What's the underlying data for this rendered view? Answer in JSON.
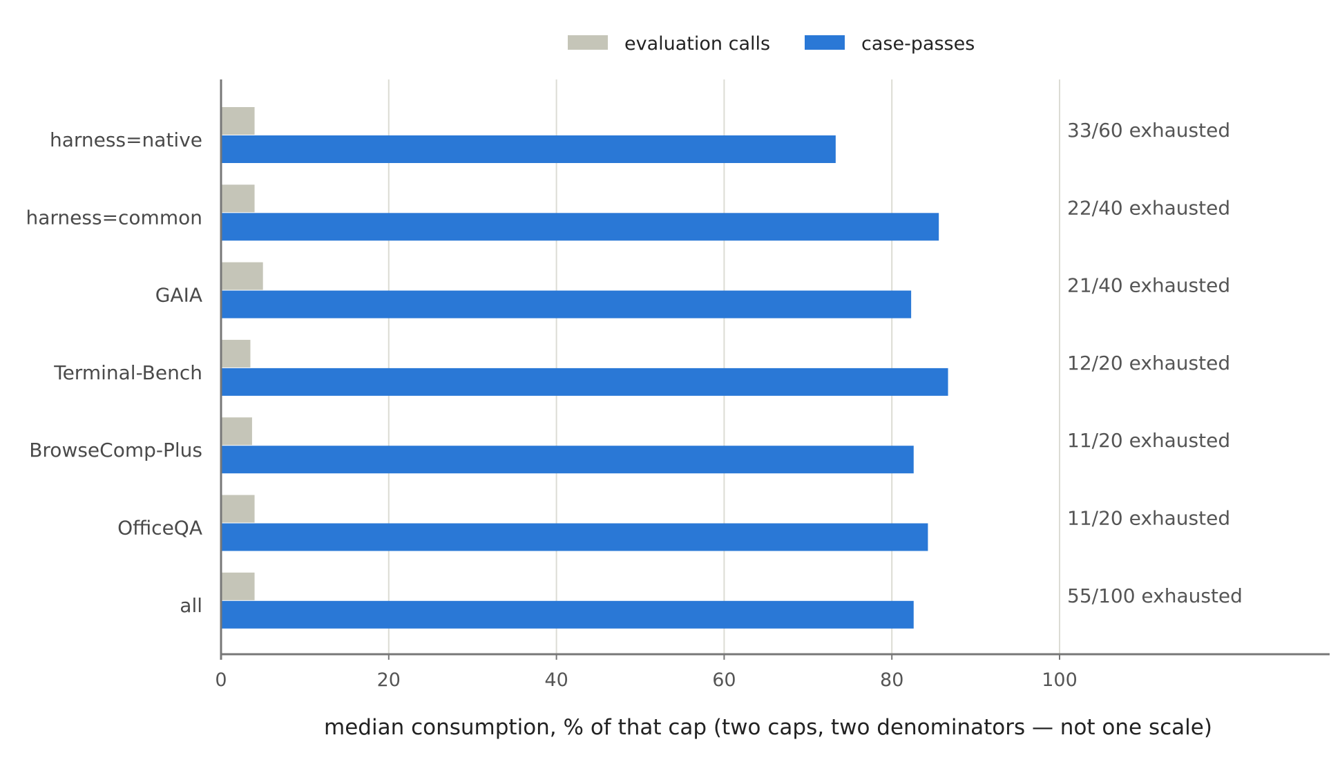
{
  "chart_data": {
    "type": "bar",
    "orientation": "horizontal",
    "categories": [
      "harness=native",
      "harness=common",
      "GAIA",
      "Terminal-Bench",
      "BrowseComp-Plus",
      "OfficeQA",
      "all"
    ],
    "series": [
      {
        "name": "evaluation calls",
        "color": "#c5c5b8",
        "values": [
          4,
          4,
          5,
          3.5,
          3.7,
          4,
          4
        ]
      },
      {
        "name": "case-passes",
        "color": "#2a78d6",
        "values": [
          73.3,
          85.6,
          82.3,
          86.7,
          82.6,
          84.3,
          82.6
        ]
      }
    ],
    "annotations": [
      "33/60 exhausted",
      "22/40 exhausted",
      "21/40 exhausted",
      "12/20 exhausted",
      "11/20 exhausted",
      "11/20 exhausted",
      "55/100 exhausted"
    ],
    "xlim": [
      0,
      130
    ],
    "xticks": [
      0,
      20,
      40,
      60,
      80,
      100
    ],
    "xlabel": "median consumption, % of that cap (two caps, two denominators — not one scale)",
    "grid": "vertical",
    "legend_position": "top"
  }
}
